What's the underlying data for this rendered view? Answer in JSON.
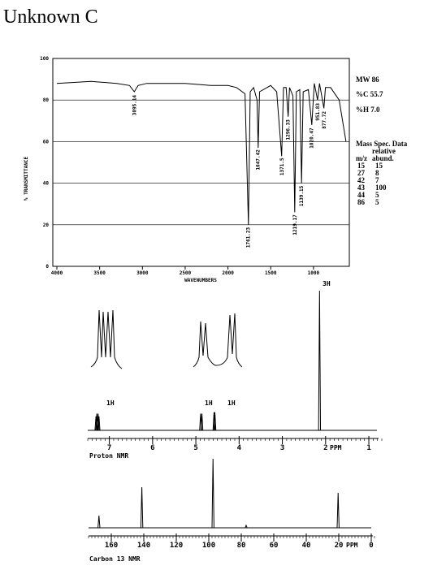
{
  "title": "Unknown C",
  "ir": {
    "type": "line",
    "x_label": "WAVENUMBERS",
    "y_label": "% TRANSMITTANCE",
    "xlim": [
      4000,
      600
    ],
    "ylim": [
      0,
      100
    ],
    "xticks": [
      4000,
      3500,
      3000,
      2500,
      2000,
      1500,
      1000
    ],
    "yticks": [
      0,
      20,
      40,
      60,
      80,
      100
    ],
    "x": [
      4000,
      3600,
      3300,
      3150,
      3095,
      3050,
      2950,
      2500,
      2200,
      2000,
      1900,
      1800,
      1761,
      1740,
      1700,
      1660,
      1647,
      1630,
      1500,
      1430,
      1372,
      1350,
      1320,
      1296,
      1280,
      1240,
      1219,
      1200,
      1160,
      1139,
      1120,
      1060,
      1020,
      990,
      952,
      930,
      878,
      860,
      800,
      700,
      620
    ],
    "y": [
      88,
      89,
      88,
      87,
      84,
      87,
      88,
      88,
      87,
      87,
      86,
      83,
      20,
      84,
      86,
      80,
      57,
      84,
      87,
      84,
      53,
      86,
      86,
      72,
      86,
      82,
      26,
      84,
      85,
      40,
      84,
      85,
      68,
      88,
      80,
      88,
      76,
      86,
      86,
      80,
      60
    ],
    "peak_labels": [
      3095.14,
      1761.23,
      1647.42,
      1371.5,
      1296.33,
      1219.17,
      1139.15,
      1020.47,
      951.83,
      877.72
    ]
  },
  "info": [
    "MW 86",
    "%C 55.7",
    "%H 7.0"
  ],
  "mass_spec": {
    "title": "Mass Spec. Data",
    "header": [
      "relative",
      "m/z",
      "abund."
    ],
    "rows": [
      [
        15,
        15
      ],
      [
        27,
        8
      ],
      [
        42,
        7
      ],
      [
        43,
        100
      ],
      [
        44,
        5
      ],
      [
        86,
        5
      ]
    ]
  },
  "proton": {
    "type": "nmr",
    "label": "Proton NMR",
    "unit": "PPM",
    "xlim": [
      7.5,
      0.7
    ],
    "xticks": [
      7,
      6,
      5,
      4,
      3,
      2,
      1
    ],
    "shifts": [
      7.31,
      7.29,
      7.26,
      7.24,
      4.89,
      4.86,
      4.58,
      4.56,
      2.14
    ],
    "heights": [
      10,
      12,
      12,
      10,
      12,
      12,
      13,
      13,
      100
    ],
    "integrations": [
      "1H",
      "1H",
      "1H",
      "3H"
    ]
  },
  "carbon": {
    "type": "nmr",
    "label": "Carbon 13 NMR",
    "unit": "PPM",
    "xlim": [
      174,
      -3
    ],
    "xticks": [
      160,
      140,
      120,
      100,
      80,
      60,
      40,
      20,
      0
    ],
    "shifts": [
      167.6,
      141.2,
      97.4,
      77.0,
      20.4
    ],
    "heights": [
      15,
      50,
      85,
      3,
      43
    ]
  }
}
